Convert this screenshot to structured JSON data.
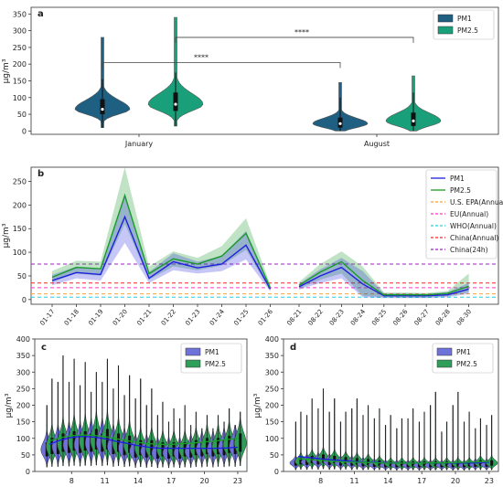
{
  "colors": {
    "pm1_dark": "#1f5f82",
    "pm25_teal": "#19a07a",
    "pm1_blue": "#1f1fe0",
    "pm25_green": "#1a9a2a",
    "pm1_violet": "#6f72d9",
    "pm25_emerald": "#2f9e58",
    "epa_line": "#ff9f33",
    "eu_line": "#ff33cc",
    "who_line": "#1fd0e0",
    "china_annual_line": "#ff2020",
    "china_24h_line": "#a020c0"
  },
  "chart_data": [
    {
      "panel": "a",
      "type": "violin",
      "categories": [
        "January",
        "August"
      ],
      "ylabel": "μg/m³",
      "ylim": [
        -10,
        370
      ],
      "yticks": [
        0,
        50,
        100,
        150,
        200,
        250,
        300,
        350
      ],
      "series": [
        {
          "name": "PM1",
          "medians": [
            65,
            22
          ],
          "q1": [
            50,
            10
          ],
          "q3": [
            95,
            40
          ],
          "min": [
            10,
            0
          ],
          "max": [
            280,
            145
          ]
        },
        {
          "name": "PM2.5",
          "medians": [
            80,
            30
          ],
          "q1": [
            60,
            15
          ],
          "q3": [
            115,
            55
          ],
          "min": [
            15,
            0
          ],
          "max": [
            340,
            165
          ]
        }
      ],
      "significance": [
        {
          "label": "****",
          "from": "January PM1",
          "to": "August PM1"
        },
        {
          "label": "****",
          "from": "January PM2.5",
          "to": "August PM2.5"
        }
      ],
      "legend": [
        "PM1",
        "PM2.5"
      ],
      "legend_position": "top-right"
    },
    {
      "panel": "b",
      "type": "line",
      "ylabel": "μg/m³",
      "ylim": [
        -10,
        280
      ],
      "yticks": [
        0,
        50,
        100,
        150,
        200,
        250
      ],
      "categories": [
        "01-17",
        "01-18",
        "01-19",
        "01-20",
        "01-21",
        "01-22",
        "01-23",
        "01-24",
        "01-25",
        "01-26",
        "08-21",
        "08-22",
        "08-23",
        "08-24",
        "08-25",
        "08-26",
        "08-27",
        "08-28",
        "08-30"
      ],
      "series": [
        {
          "name": "PM1",
          "values": [
            40,
            57,
            53,
            175,
            45,
            80,
            67,
            75,
            115,
            22,
            27,
            50,
            68,
            33,
            8,
            8,
            8,
            10,
            22
          ],
          "lower": [
            30,
            45,
            40,
            120,
            35,
            62,
            55,
            60,
            85,
            17,
            21,
            35,
            45,
            5,
            3,
            3,
            3,
            5,
            12
          ],
          "upper": [
            52,
            70,
            66,
            225,
            58,
            98,
            80,
            92,
            145,
            28,
            33,
            64,
            88,
            60,
            13,
            13,
            12,
            16,
            35
          ]
        },
        {
          "name": "PM2.5",
          "values": [
            47,
            68,
            65,
            220,
            55,
            86,
            75,
            92,
            140,
            25,
            30,
            58,
            80,
            40,
            10,
            10,
            10,
            13,
            28
          ],
          "lower": [
            37,
            55,
            50,
            160,
            42,
            70,
            62,
            72,
            105,
            19,
            23,
            42,
            55,
            8,
            5,
            4,
            4,
            7,
            15
          ],
          "upper": [
            60,
            82,
            80,
            280,
            70,
            102,
            88,
            113,
            172,
            32,
            37,
            75,
            102,
            70,
            15,
            15,
            14,
            18,
            55
          ]
        }
      ],
      "reference_lines": [
        {
          "name": "U.S. EPA(Annual)",
          "value": 12
        },
        {
          "name": "EU(Annual)",
          "value": 25
        },
        {
          "name": "WHO(Annual)",
          "value": 5
        },
        {
          "name": "China(Annual)",
          "value": 35
        },
        {
          "name": "China(24h)",
          "value": 75
        }
      ],
      "legend_position": "top-right"
    },
    {
      "panel": "c",
      "type": "violin",
      "ylabel": "μg/m³",
      "ylim": [
        0,
        400
      ],
      "yticks": [
        0,
        50,
        100,
        150,
        200,
        250,
        300,
        350,
        400
      ],
      "xticks": [
        "8",
        "11",
        "14",
        "17",
        "20",
        "23"
      ],
      "hours": [
        6,
        7,
        8,
        9,
        10,
        11,
        12,
        13,
        14,
        15,
        16,
        17,
        18,
        19,
        20,
        21,
        22,
        23
      ],
      "series": [
        {
          "name": "PM1",
          "max": [
            200,
            270,
            270,
            260,
            240,
            270,
            250,
            230,
            220,
            200,
            170,
            150,
            160,
            140,
            130,
            130,
            150,
            140
          ],
          "median": [
            65,
            75,
            80,
            80,
            85,
            85,
            75,
            70,
            60,
            60,
            55,
            55,
            55,
            60,
            65,
            65,
            70,
            75
          ],
          "trend": [
            82,
            95,
            103,
            106,
            104,
            99,
            91,
            85,
            78,
            73,
            70,
            70,
            70,
            70,
            70,
            70,
            71,
            73
          ]
        },
        {
          "name": "PM2.5",
          "max": [
            280,
            350,
            340,
            330,
            300,
            340,
            320,
            290,
            280,
            250,
            210,
            190,
            200,
            180,
            170,
            170,
            190,
            180
          ],
          "median": [
            75,
            85,
            90,
            90,
            95,
            95,
            85,
            80,
            70,
            70,
            65,
            65,
            65,
            70,
            75,
            75,
            80,
            85
          ],
          "trend": [
            92,
            102,
            108,
            110,
            109,
            105,
            99,
            93,
            88,
            84,
            82,
            82,
            84,
            86,
            89,
            92,
            96,
            100
          ]
        }
      ],
      "legend": [
        "PM1",
        "PM2.5"
      ],
      "legend_position": "top-right"
    },
    {
      "panel": "d",
      "type": "violin",
      "ylabel": "μg/m³",
      "ylim": [
        0,
        400
      ],
      "yticks": [
        0,
        50,
        100,
        150,
        200,
        250,
        300,
        350,
        400
      ],
      "xticks": [
        "8",
        "11",
        "14",
        "17",
        "20",
        "23"
      ],
      "hours": [
        6,
        7,
        8,
        9,
        10,
        11,
        12,
        13,
        14,
        15,
        16,
        17,
        18,
        19,
        20,
        21,
        22,
        23
      ],
      "series": [
        {
          "name": "PM1",
          "max": [
            150,
            170,
            190,
            180,
            150,
            190,
            170,
            160,
            140,
            130,
            160,
            150,
            200,
            120,
            200,
            150,
            130,
            140
          ],
          "median": [
            25,
            28,
            30,
            28,
            25,
            25,
            22,
            20,
            18,
            18,
            18,
            18,
            18,
            18,
            18,
            18,
            20,
            20
          ],
          "trend": [
            45,
            42,
            38,
            35,
            33,
            30,
            28,
            27,
            26,
            25,
            25,
            25,
            25,
            25,
            25,
            25,
            26,
            28
          ]
        },
        {
          "name": "PM2.5",
          "max": [
            180,
            220,
            250,
            220,
            180,
            220,
            200,
            190,
            170,
            160,
            190,
            180,
            240,
            150,
            240,
            180,
            160,
            170
          ],
          "median": [
            30,
            35,
            38,
            35,
            32,
            30,
            28,
            25,
            22,
            22,
            22,
            22,
            22,
            22,
            22,
            22,
            25,
            25
          ],
          "trend": [
            38,
            36,
            33,
            31,
            29,
            28,
            27,
            26,
            25,
            25,
            25,
            25,
            26,
            26,
            27,
            28,
            29,
            30
          ]
        }
      ],
      "legend": [
        "PM1",
        "PM2.5"
      ],
      "legend_position": "top-right"
    }
  ]
}
